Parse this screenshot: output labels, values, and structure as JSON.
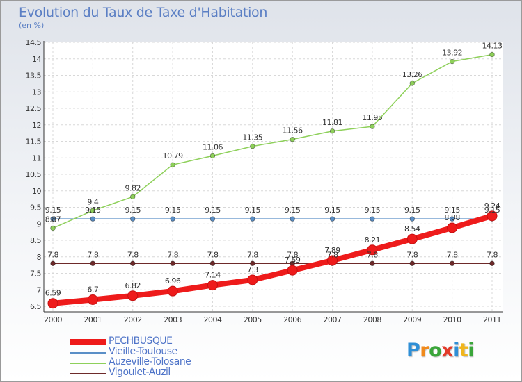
{
  "header": {
    "title": "Evolution du Taux de Taxe d'Habitation",
    "subtitle": "(en %)"
  },
  "logo": {
    "text": "Proxiti",
    "letter_colors": [
      "#2f8fd6",
      "#f08a1c",
      "#3aa63a",
      "#e23b2a",
      "#2f8fd6",
      "#f0b51c",
      "#3aa63a"
    ]
  },
  "chart_data": {
    "type": "line",
    "x": [
      "2000",
      "2001",
      "2002",
      "2003",
      "2004",
      "2005",
      "2006",
      "2007",
      "2008",
      "2009",
      "2010",
      "2011"
    ],
    "ylim": [
      6.5,
      14.5
    ],
    "yticks": [
      "6.5",
      "7",
      "7.5",
      "8",
      "8.5",
      "9",
      "9.5",
      "10",
      "10.5",
      "11",
      "11.5",
      "12",
      "12.5",
      "13",
      "13.5",
      "14",
      "14.5"
    ],
    "grid": true,
    "legend_position": "bottom-left",
    "series": [
      {
        "name": "PECHBUSQUE",
        "color": "#ee1b1b",
        "values": [
          6.59,
          6.7,
          6.82,
          6.96,
          7.14,
          7.3,
          7.59,
          7.89,
          8.21,
          8.54,
          8.88,
          9.24
        ],
        "labels": [
          "6.59",
          "6.7",
          "6.82",
          "6.96",
          "7.14",
          "7.3",
          "7.59",
          "7.89",
          "8.21",
          "8.54",
          "8.88",
          "9.24"
        ]
      },
      {
        "name": "Vieille-Toulouse",
        "color": "#5a8fc7",
        "values": [
          9.15,
          9.15,
          9.15,
          9.15,
          9.15,
          9.15,
          9.15,
          9.15,
          9.15,
          9.15,
          9.15,
          9.15
        ],
        "labels": [
          "9.15",
          "9.15",
          "9.15",
          "9.15",
          "9.15",
          "9.15",
          "9.15",
          "9.15",
          "9.15",
          "9.15",
          "9.15",
          "9.15"
        ]
      },
      {
        "name": "Auzeville-Tolosane",
        "color": "#8ed05a",
        "values": [
          8.87,
          9.4,
          9.82,
          10.79,
          11.06,
          11.35,
          11.56,
          11.81,
          11.95,
          13.26,
          13.92,
          14.13
        ],
        "labels": [
          "8.87",
          "9.4",
          "9.82",
          "10.79",
          "11.06",
          "11.35",
          "11.56",
          "11.81",
          "11.95",
          "13.26",
          "13.92",
          "14.13"
        ]
      },
      {
        "name": "Vigoulet-Auzil",
        "color": "#6e2a2a",
        "values": [
          7.8,
          7.8,
          7.8,
          7.8,
          7.8,
          7.8,
          7.8,
          7.8,
          7.8,
          7.8,
          7.8,
          7.8
        ],
        "labels": [
          "7.8",
          "7.8",
          "7.8",
          "7.8",
          "7.8",
          "7.8",
          "7.8",
          "7.8",
          "7.8",
          "7.8",
          "7.8",
          "7.8"
        ]
      }
    ]
  }
}
